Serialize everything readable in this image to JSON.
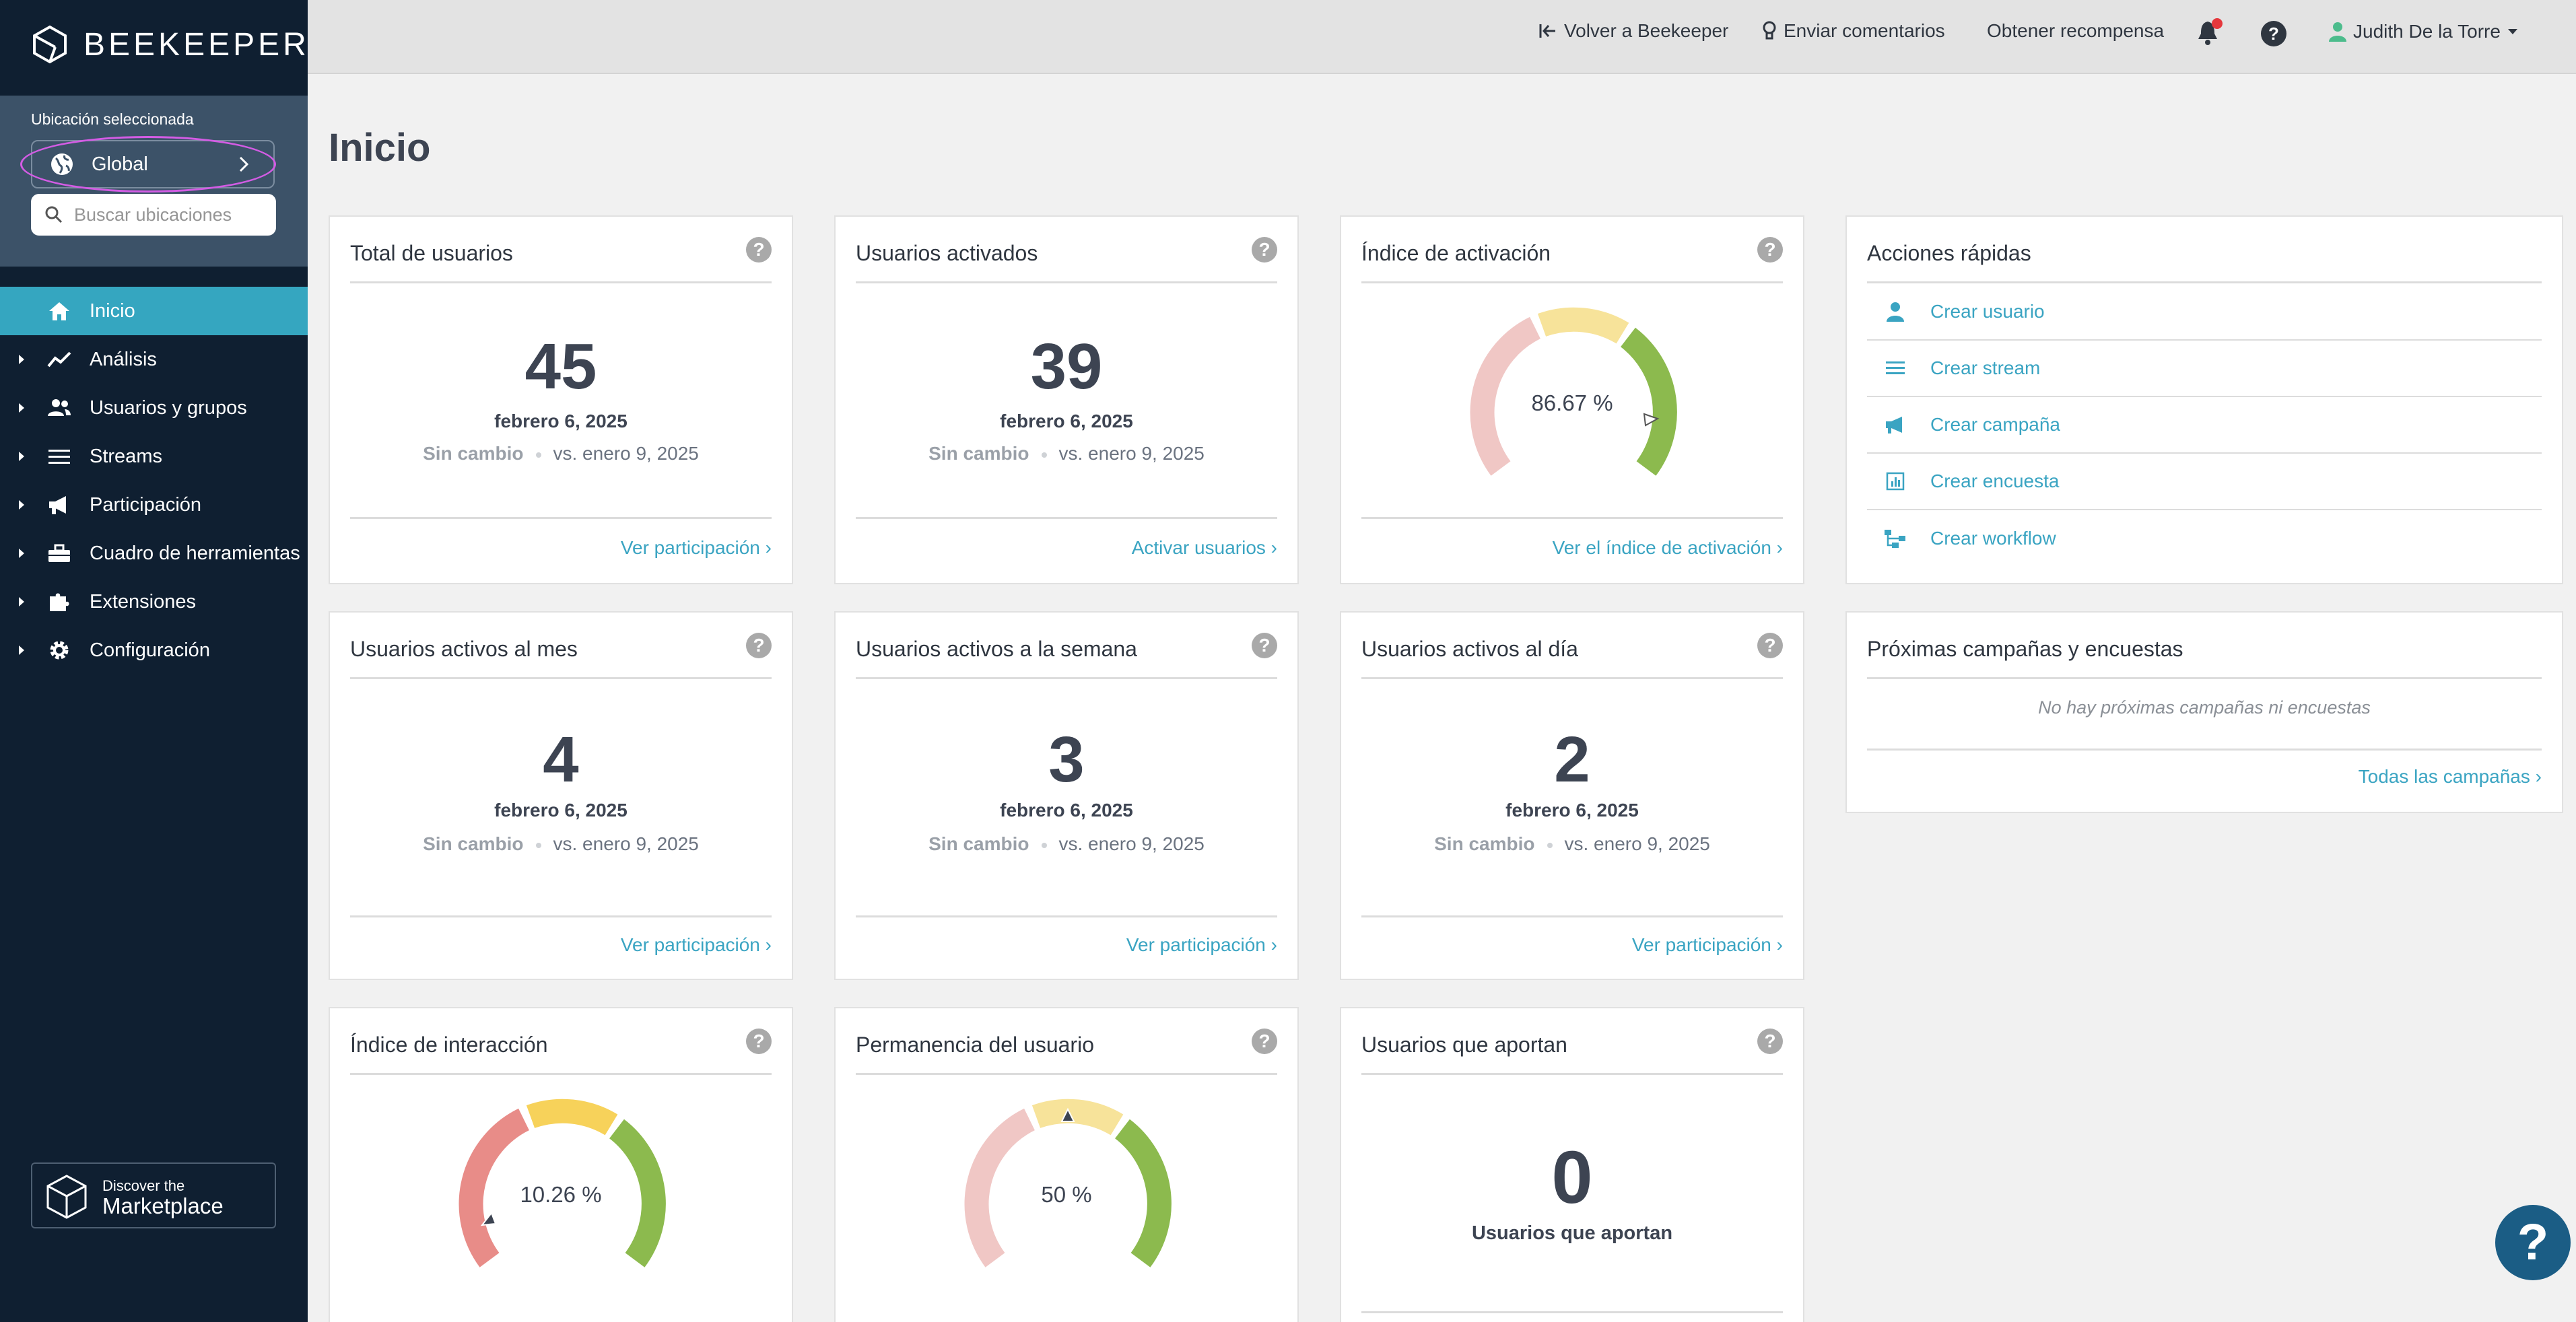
{
  "brand": {
    "logo_text": "BEEKEEPER"
  },
  "location": {
    "label": "Ubicación seleccionada",
    "selected": "Global",
    "search_placeholder": "Buscar ubicaciones"
  },
  "nav": [
    {
      "label": "Inicio",
      "icon": "home-icon",
      "active": true
    },
    {
      "label": "Análisis",
      "icon": "chart-line-icon"
    },
    {
      "label": "Usuarios y grupos",
      "icon": "users-icon"
    },
    {
      "label": "Streams",
      "icon": "list-icon"
    },
    {
      "label": "Participación",
      "icon": "megaphone-icon"
    },
    {
      "label": "Cuadro de herramientas",
      "icon": "toolbox-icon"
    },
    {
      "label": "Extensiones",
      "icon": "puzzle-icon"
    },
    {
      "label": "Configuración",
      "icon": "gear-icon"
    }
  ],
  "marketplace": {
    "line1": "Discover the",
    "line2": "Marketplace"
  },
  "topbar": {
    "back": "Volver a Beekeeper",
    "feedback": "Enviar comentarios",
    "reward": "Obtener recompensa",
    "user": "Judith De la Torre"
  },
  "page": {
    "title": "Inicio"
  },
  "cards": {
    "total": {
      "title": "Total de usuarios",
      "value": "45",
      "date": "febrero 6, 2025",
      "change": "Sin cambio",
      "vs": "vs. enero 9, 2025",
      "link": "Ver participación"
    },
    "activated": {
      "title": "Usuarios activados",
      "value": "39",
      "date": "febrero 6, 2025",
      "change": "Sin cambio",
      "vs": "vs. enero 9, 2025",
      "link": "Activar usuarios"
    },
    "activation_rate": {
      "title": "Índice de activación",
      "value": "86.67 %",
      "level": 0.8667,
      "link": "Ver el índice de activación"
    },
    "monthly": {
      "title": "Usuarios activos al mes",
      "value": "4",
      "date": "febrero 6, 2025",
      "change": "Sin cambio",
      "vs": "vs. enero 9, 2025",
      "link": "Ver participación"
    },
    "weekly": {
      "title": "Usuarios activos a la semana",
      "value": "3",
      "date": "febrero 6, 2025",
      "change": "Sin cambio",
      "vs": "vs. enero 9, 2025",
      "link": "Ver participación"
    },
    "daily": {
      "title": "Usuarios activos al día",
      "value": "2",
      "date": "febrero 6, 2025",
      "change": "Sin cambio",
      "vs": "vs. enero 9, 2025",
      "link": "Ver participación"
    },
    "interaction": {
      "title": "Índice de interacción",
      "value": "10.26 %",
      "level": 0.1026
    },
    "retention": {
      "title": "Permanencia del usuario",
      "value": "50 %",
      "level": 0.5
    },
    "contributors": {
      "title": "Usuarios que aportan",
      "value": "0",
      "sub": "Usuarios que aportan"
    }
  },
  "quick_actions": {
    "title": "Acciones rápidas",
    "items": [
      {
        "label": "Crear usuario",
        "icon": "user-icon"
      },
      {
        "label": "Crear stream",
        "icon": "list-icon"
      },
      {
        "label": "Crear campaña",
        "icon": "megaphone-icon"
      },
      {
        "label": "Crear encuesta",
        "icon": "poll-icon"
      },
      {
        "label": "Crear workflow",
        "icon": "workflow-icon"
      }
    ]
  },
  "upcoming": {
    "title": "Próximas campañas y encuestas",
    "empty": "No hay próximas campañas ni encuestas",
    "link": "Todas las campañas"
  },
  "colors": {
    "sidebar": "#0f1f31",
    "accent": "#35a6c0",
    "link": "#3aa4c2",
    "gauge_red": "#f0c7c5",
    "gauge_yellow": "#f7e39a",
    "gauge_green": "#8cba4e"
  }
}
